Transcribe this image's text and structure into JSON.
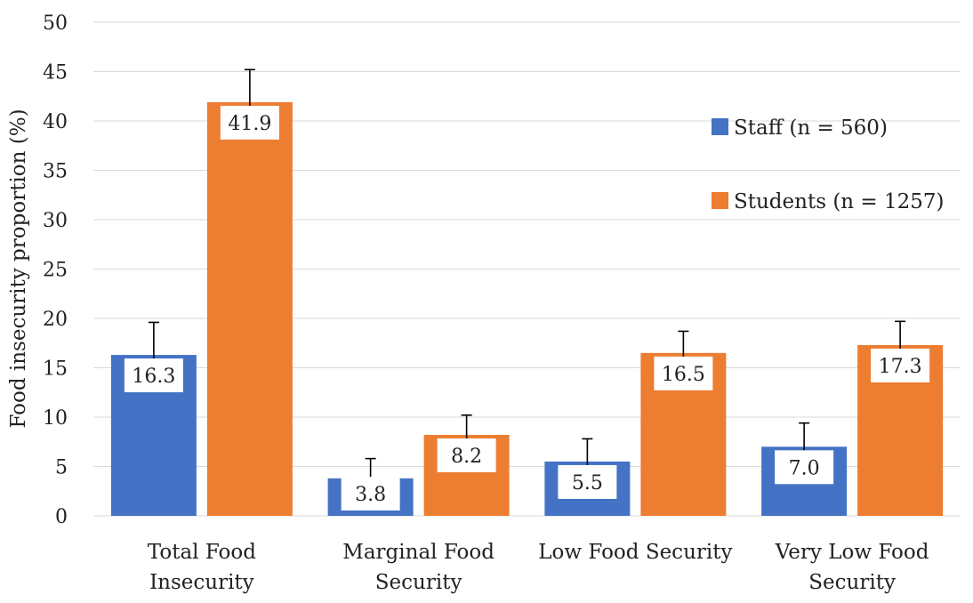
{
  "chart_data": {
    "type": "bar",
    "title": "",
    "xlabel": "",
    "ylabel": "Food insecurity proportion (%)",
    "ylim": [
      0,
      50
    ],
    "yticks": [
      0,
      5,
      10,
      15,
      20,
      25,
      30,
      35,
      40,
      45,
      50
    ],
    "grid": true,
    "legend_position": "top-right",
    "categories": [
      [
        "Total Food",
        "Insecurity"
      ],
      [
        "Marginal Food",
        "Security"
      ],
      [
        "Low Food Security"
      ],
      [
        "Very Low Food",
        "Security"
      ]
    ],
    "series": [
      {
        "name": "Staff (n = 560)",
        "color": "#4472c4",
        "values": [
          16.3,
          3.8,
          5.5,
          7.0
        ],
        "labels": [
          "16.3",
          "3.8",
          "5.5",
          "7.0"
        ],
        "error_low": [
          13.0,
          1.8,
          3.3,
          4.8
        ],
        "error_high": [
          19.6,
          5.8,
          7.8,
          9.4
        ]
      },
      {
        "name": "Students (n = 1257)",
        "color": "#ed7d31",
        "values": [
          41.9,
          8.2,
          16.5,
          17.3
        ],
        "labels": [
          "41.9",
          "8.2",
          "16.5",
          "17.3"
        ],
        "error_low": [
          38.7,
          6.2,
          14.2,
          14.8
        ],
        "error_high": [
          45.2,
          10.2,
          18.7,
          19.7
        ]
      }
    ]
  }
}
